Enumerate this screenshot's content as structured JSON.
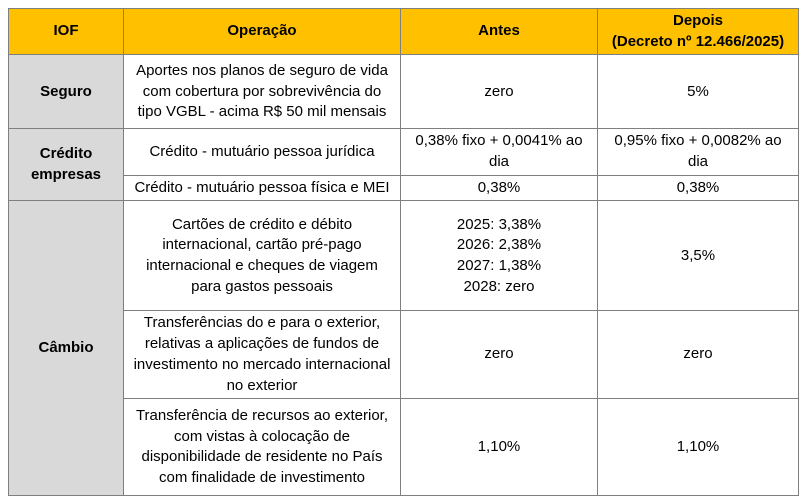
{
  "colors": {
    "header_bg": "#ffc000",
    "group_bg": "#d9d9d9",
    "border": "#7f7f7f",
    "text": "#000000"
  },
  "table": {
    "headers": {
      "iof": "IOF",
      "operacao": "Operação",
      "antes": "Antes",
      "depois": "Depois\n(Decreto nº 12.466/2025)"
    },
    "groups": [
      {
        "label": "Seguro",
        "rows": [
          {
            "operacao": "Aportes nos planos de seguro de vida com cobertura por sobrevivência do tipo VGBL - acima R$ 50 mil mensais",
            "antes": "zero",
            "depois": "5%"
          }
        ]
      },
      {
        "label": "Crédito empresas",
        "rows": [
          {
            "operacao": "Crédito - mutuário pessoa jurídica",
            "antes": "0,38% fixo + 0,0041% ao dia",
            "depois": "0,95% fixo + 0,0082% ao dia"
          },
          {
            "operacao": "Crédito - mutuário pessoa física e MEI",
            "antes": "0,38%",
            "depois": "0,38%"
          }
        ]
      },
      {
        "label": "Câmbio",
        "rows": [
          {
            "operacao": "Cartões de crédito e débito internacional, cartão pré-pago internacional e cheques de viagem para gastos pessoais",
            "antes": "2025: 3,38%\n2026: 2,38%\n2027: 1,38%\n2028: zero",
            "depois": "3,5%"
          },
          {
            "operacao": "Transferências do e para o exterior, relativas a aplicações de fundos de investimento no mercado internacional no exterior",
            "antes": "zero",
            "depois": "zero"
          },
          {
            "operacao": "Transferência de recursos ao exterior, com vistas à colocação de disponibilidade de residente no País com finalidade de investimento",
            "antes": "1,10%",
            "depois": "1,10%"
          }
        ]
      }
    ]
  }
}
